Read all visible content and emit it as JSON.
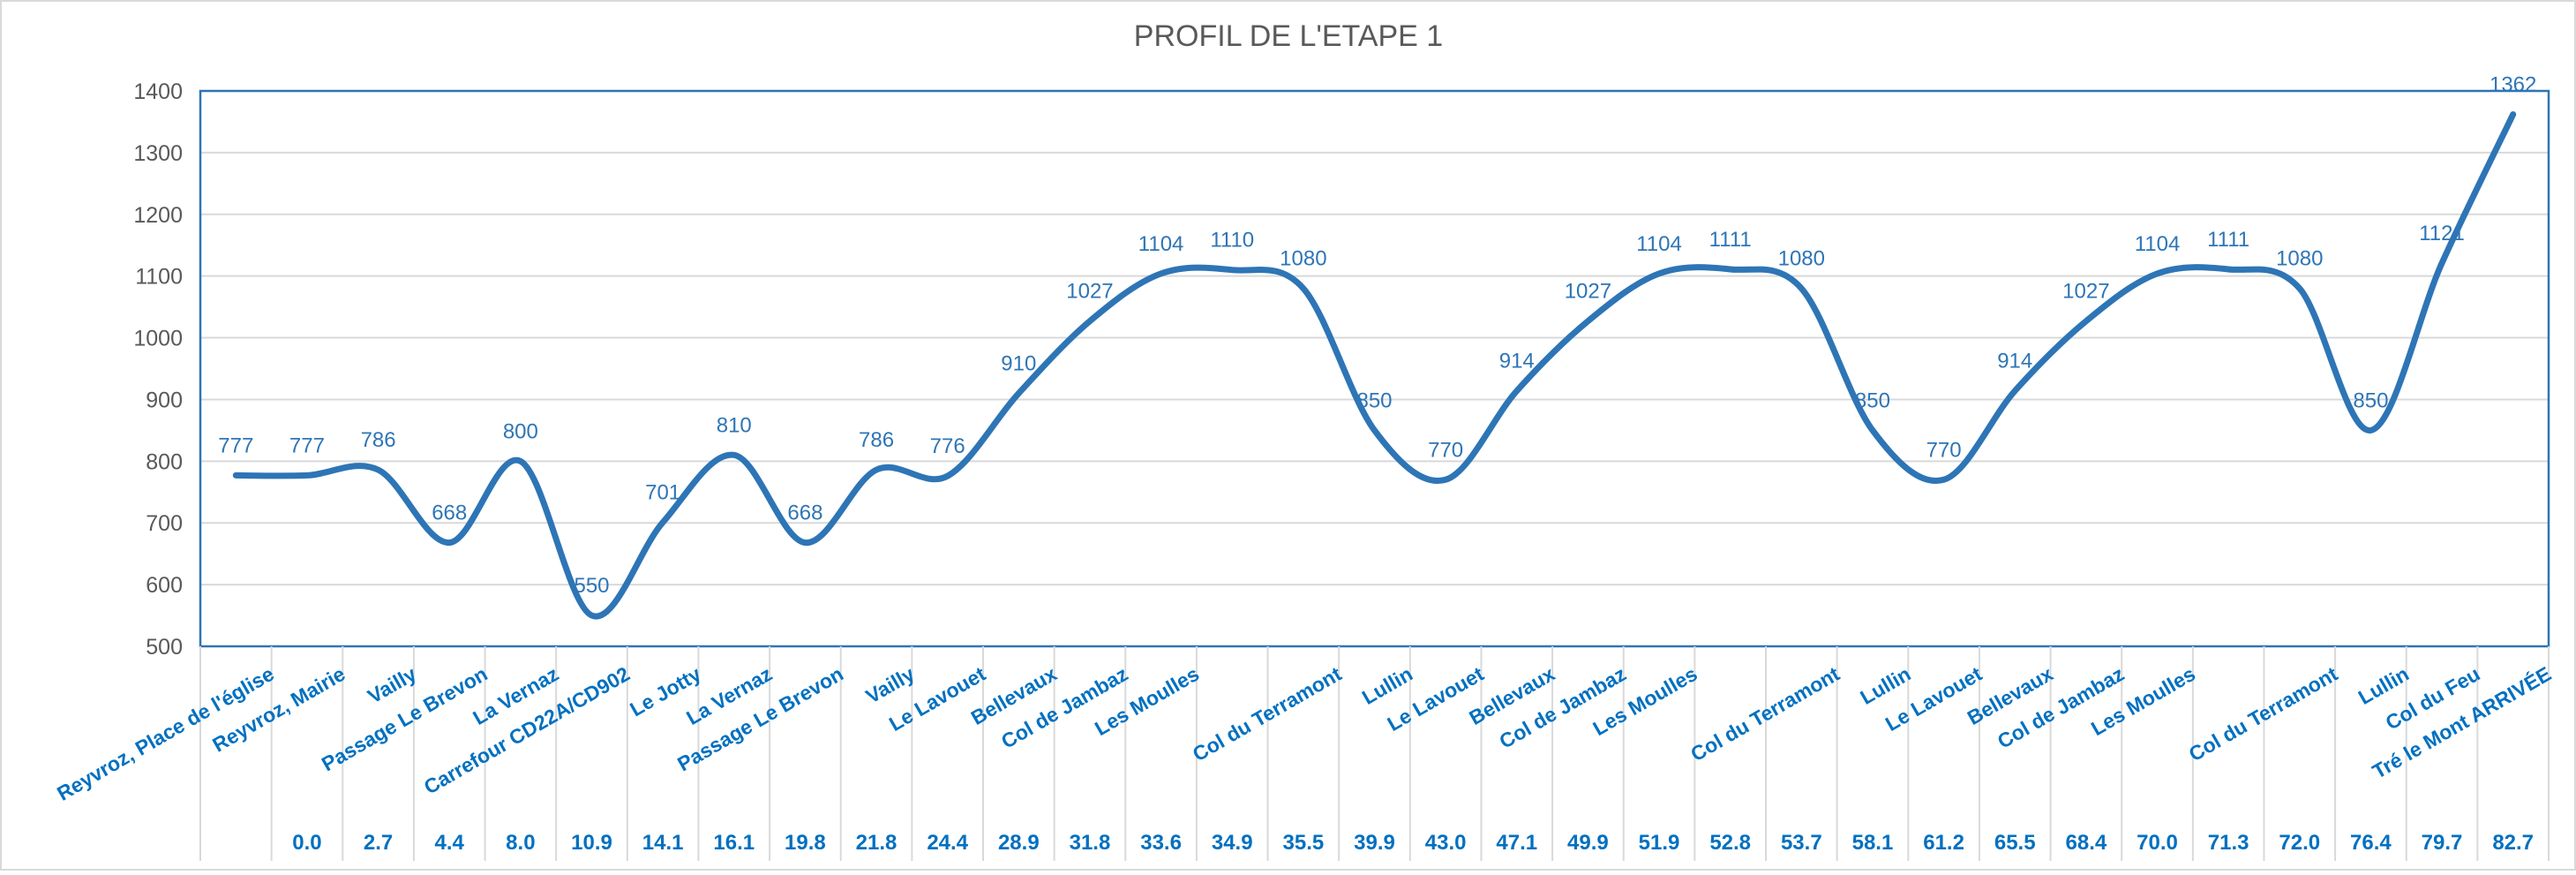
{
  "chart_data": {
    "type": "line",
    "title": "PROFIL DE L'ETAPE 1",
    "xlabel": "",
    "ylabel": "",
    "ylim": [
      500,
      1400
    ],
    "yticks": [
      500,
      600,
      700,
      800,
      900,
      1000,
      1100,
      1200,
      1300,
      1400
    ],
    "grid": true,
    "legend": "none",
    "line_color": "#2e75b6",
    "label_color": "#2e75b6",
    "categories": [
      "Reyvroz, Place de l'église",
      "Reyvroz, Mairie",
      "Vailly",
      "Passage  Le Brevon",
      "La Vernaz",
      "Carrefour  CD22A/CD902",
      "Le Jotty",
      "La Vernaz",
      "Passage  Le Brevon",
      "Vailly",
      "Le Lavouet",
      "Bellevaux",
      "Col de Jambaz",
      "Les Moulles",
      "",
      "Col du Terramont",
      "Lullin",
      "Le Lavouet",
      "Bellevaux",
      "Col de Jambaz",
      "Les Moulles",
      "",
      "Col du Terramont",
      "Lullin",
      "Le Lavouet",
      "Bellevaux",
      "Col de Jambaz",
      "Les Moulles",
      "",
      "Col du Terramont",
      "Lullin",
      "Col du Feu",
      "Tré le Mont ARRIVÉE"
    ],
    "distances": [
      "",
      "0.0",
      "2.7",
      "4.4",
      "8.0",
      "10.9",
      "14.1",
      "16.1",
      "19.8",
      "21.8",
      "24.4",
      "28.9",
      "31.8",
      "33.6",
      "34.9",
      "35.5",
      "39.9",
      "43.0",
      "47.1",
      "49.9",
      "51.9",
      "52.8",
      "53.7",
      "58.1",
      "61.2",
      "65.5",
      "68.4",
      "70.0",
      "71.3",
      "72.0",
      "76.4",
      "79.7",
      "82.7"
    ],
    "values": [
      777,
      777,
      786,
      668,
      800,
      550,
      701,
      810,
      668,
      786,
      776,
      910,
      1027,
      1104,
      1110,
      1080,
      850,
      770,
      914,
      1027,
      1104,
      1111,
      1080,
      850,
      770,
      914,
      1027,
      1104,
      1111,
      1080,
      850,
      1121,
      1362
    ]
  }
}
